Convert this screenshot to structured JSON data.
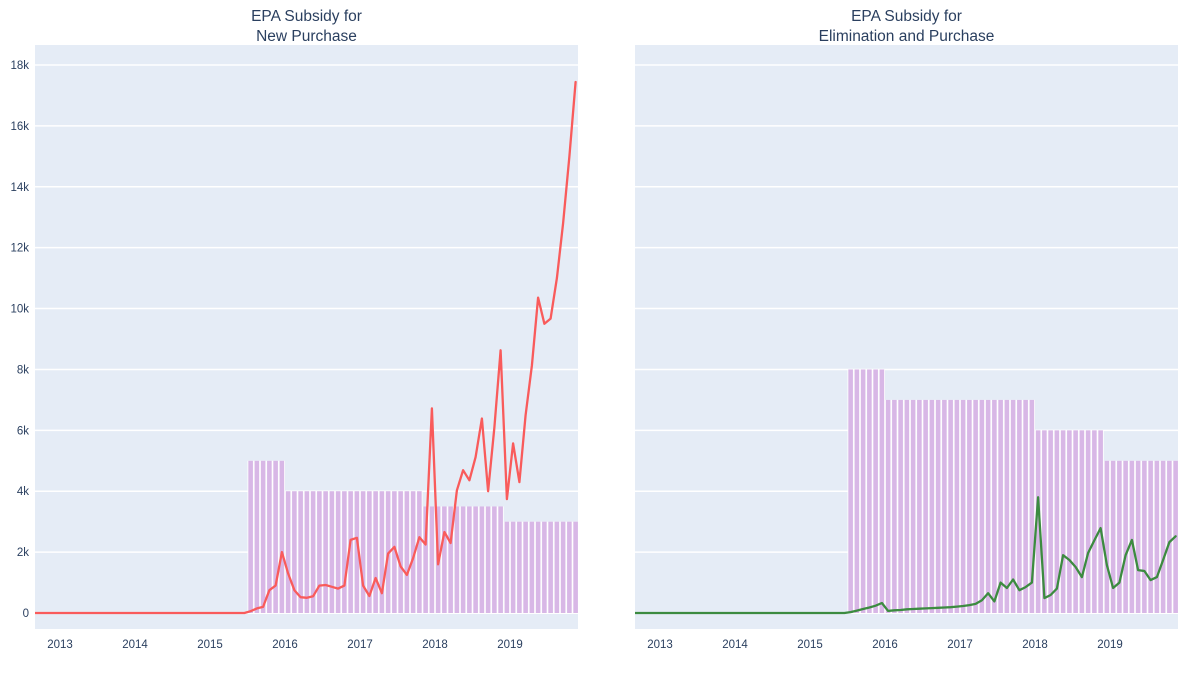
{
  "colors": {
    "paper_background": "#ffffff",
    "plot_background": "#e5ecf6",
    "gridline": "#ffffff",
    "text": "#2a3f5f",
    "left_line": "#f95b5b",
    "right_line": "#3c8b40",
    "bars": "#d8b7e6",
    "bar_gap": "#ffffff"
  },
  "axis": {
    "x_tick_labels": [
      "2013",
      "2014",
      "2015",
      "2016",
      "2017",
      "2018",
      "2019"
    ],
    "y_tick_labels": [
      "0",
      "2k",
      "4k",
      "6k",
      "8k",
      "10k",
      "12k",
      "14k",
      "16k",
      "18k"
    ],
    "y_tick_values": [
      0,
      2000,
      4000,
      6000,
      8000,
      10000,
      12000,
      14000,
      16000,
      18000
    ]
  },
  "chart_data": [
    {
      "type": "line+bar",
      "title": "EPA Subsidy for New Purchase",
      "title_lines": [
        "EPA Subsidy for",
        "New Purchase"
      ],
      "x_start": "2012-08",
      "x_end": "2019-11",
      "x_freq": "monthly",
      "xlabel": "",
      "ylabel": "",
      "ylim": [
        0,
        18600
      ],
      "x_range_years": [
        2012.667,
        2019.907
      ],
      "show_y_tick_labels": true,
      "legend": false,
      "grid": "horizontal white gridlines on light blue panel",
      "line_series": {
        "color": "#f95b5b",
        "values": [
          0,
          0,
          0,
          0,
          0,
          0,
          0,
          0,
          0,
          0,
          0,
          0,
          0,
          0,
          0,
          0,
          0,
          0,
          0,
          0,
          0,
          0,
          0,
          0,
          0,
          0,
          0,
          0,
          0,
          0,
          0,
          0,
          0,
          0,
          0,
          60,
          150,
          200,
          750,
          900,
          2000,
          1300,
          750,
          520,
          500,
          550,
          900,
          920,
          860,
          800,
          900,
          2400,
          2470,
          900,
          560,
          1150,
          650,
          1950,
          2170,
          1530,
          1250,
          1800,
          2490,
          2250,
          6720,
          1600,
          2660,
          2300,
          4030,
          4690,
          4360,
          5120,
          6390,
          4000,
          6100,
          8630,
          3740,
          5570,
          4300,
          6500,
          8130,
          10360,
          9500,
          9670,
          11000,
          12800,
          15000,
          17440
        ]
      },
      "bar_series": {
        "color": "#d8b7e6",
        "values": [
          0,
          0,
          0,
          0,
          0,
          0,
          0,
          0,
          0,
          0,
          0,
          0,
          0,
          0,
          0,
          0,
          0,
          0,
          0,
          0,
          0,
          0,
          0,
          0,
          0,
          0,
          0,
          0,
          0,
          0,
          0,
          0,
          0,
          0,
          0,
          5000,
          5000,
          5000,
          5000,
          5000,
          5000,
          4000,
          4000,
          4000,
          4000,
          4000,
          4000,
          4000,
          4000,
          4000,
          4000,
          4000,
          4000,
          4000,
          4000,
          4000,
          4000,
          4000,
          4000,
          4000,
          4000,
          4000,
          4000,
          3500,
          3500,
          3500,
          3500,
          3500,
          3500,
          3500,
          3500,
          3500,
          3500,
          3500,
          3500,
          3500,
          3000,
          3000,
          3000,
          3000,
          3000,
          3000,
          3000,
          3000,
          3000,
          3000,
          3000,
          3000
        ]
      }
    },
    {
      "type": "line+bar",
      "title": "EPA Subsidy for Elimination and Purchase",
      "title_lines": [
        "EPA Subsidy for",
        "Elimination and Purchase"
      ],
      "x_start": "2012-08",
      "x_end": "2019-11",
      "x_freq": "monthly",
      "xlabel": "",
      "ylabel": "",
      "ylim": [
        0,
        18600
      ],
      "x_range_years": [
        2012.667,
        2019.907
      ],
      "show_y_tick_labels": false,
      "legend": false,
      "grid": "horizontal white gridlines on light blue panel",
      "line_series": {
        "color": "#3c8b40",
        "values": [
          0,
          0,
          0,
          0,
          0,
          0,
          0,
          0,
          0,
          0,
          0,
          0,
          0,
          0,
          0,
          0,
          0,
          0,
          0,
          0,
          0,
          0,
          0,
          0,
          0,
          0,
          0,
          0,
          0,
          0,
          0,
          0,
          0,
          0,
          0,
          30,
          80,
          130,
          180,
          240,
          330,
          70,
          90,
          100,
          120,
          130,
          140,
          150,
          160,
          170,
          180,
          190,
          210,
          230,
          260,
          300,
          420,
          650,
          380,
          1000,
          820,
          1100,
          750,
          850,
          1000,
          3800,
          490,
          590,
          800,
          1900,
          1740,
          1510,
          1180,
          1970,
          2390,
          2790,
          1570,
          820,
          1000,
          1900,
          2400,
          1410,
          1380,
          1080,
          1180,
          1740,
          2330,
          2520
        ]
      },
      "bar_series": {
        "color": "#d8b7e6",
        "values": [
          0,
          0,
          0,
          0,
          0,
          0,
          0,
          0,
          0,
          0,
          0,
          0,
          0,
          0,
          0,
          0,
          0,
          0,
          0,
          0,
          0,
          0,
          0,
          0,
          0,
          0,
          0,
          0,
          0,
          0,
          0,
          0,
          0,
          0,
          0,
          8000,
          8000,
          8000,
          8000,
          8000,
          8000,
          7000,
          7000,
          7000,
          7000,
          7000,
          7000,
          7000,
          7000,
          7000,
          7000,
          7000,
          7000,
          7000,
          7000,
          7000,
          7000,
          7000,
          7000,
          7000,
          7000,
          7000,
          7000,
          7000,
          7000,
          6000,
          6000,
          6000,
          6000,
          6000,
          6000,
          6000,
          6000,
          6000,
          6000,
          6000,
          5000,
          5000,
          5000,
          5000,
          5000,
          5000,
          5000,
          5000,
          5000,
          5000,
          5000,
          5000
        ]
      }
    }
  ]
}
